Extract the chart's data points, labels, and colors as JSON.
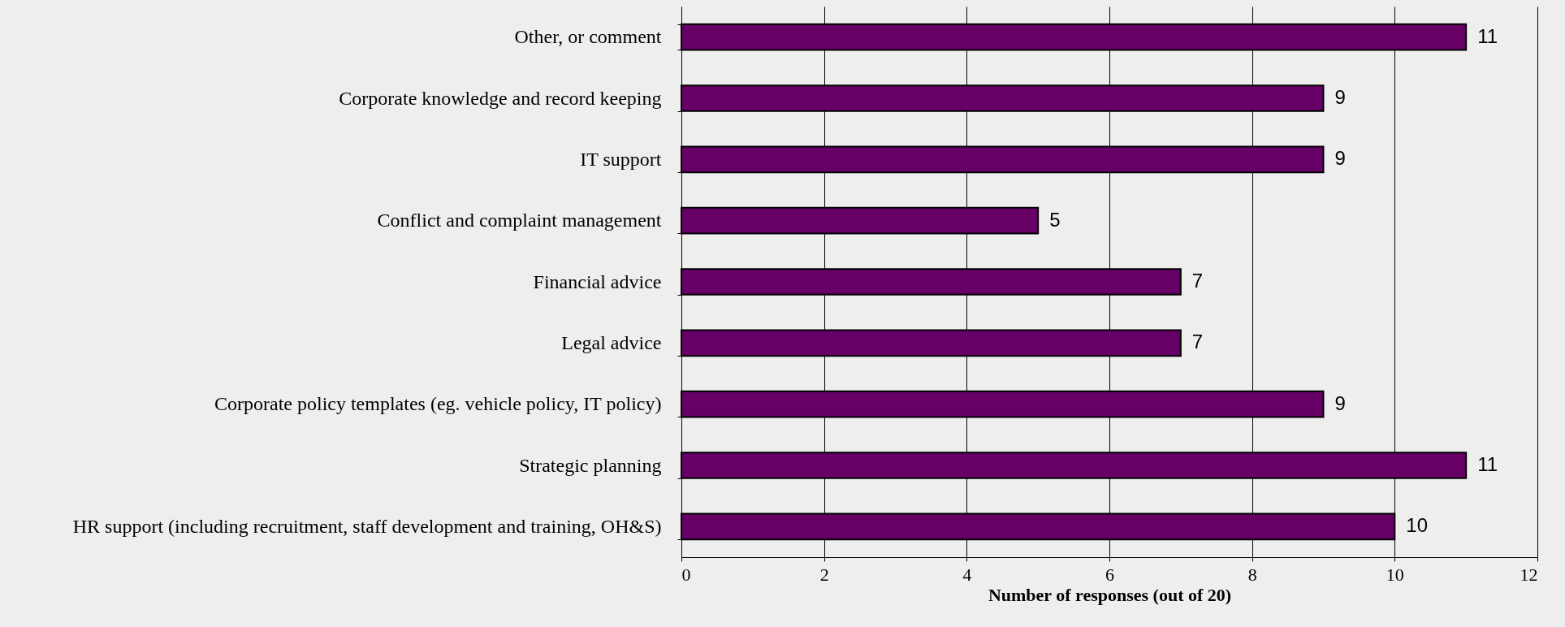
{
  "chart_data": {
    "type": "bar",
    "orientation": "horizontal",
    "xlabel": "Number of responses (out of 20)",
    "categories": [
      "Other, or comment",
      "Corporate knowledge and record keeping",
      "IT support",
      "Conflict and complaint management",
      "Financial advice",
      "Legal advice",
      "Corporate policy templates (eg. vehicle policy, IT policy)",
      "Strategic planning",
      "HR support (including recruitment, staff development and training, OH&S)"
    ],
    "values": [
      11,
      9,
      9,
      5,
      7,
      7,
      9,
      11,
      10
    ],
    "color": "#660066",
    "xlim": [
      0,
      12
    ],
    "xticks": [
      0,
      2,
      4,
      6,
      8,
      10,
      12
    ],
    "grid": "x",
    "data_labels": true
  }
}
